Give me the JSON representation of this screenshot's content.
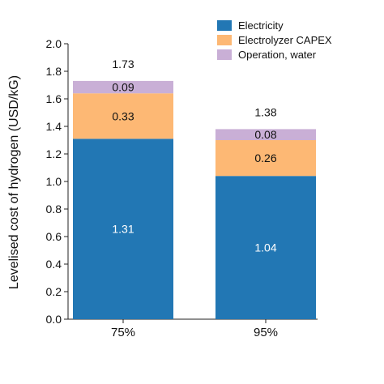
{
  "chart_data": {
    "type": "bar",
    "stacked": true,
    "categories": [
      "75%",
      "95%"
    ],
    "series": [
      {
        "name": "Electricity",
        "values": [
          1.31,
          1.04
        ],
        "color": "#2277b4",
        "label_color": "#ffffff"
      },
      {
        "name": "Electrolyzer CAPEX",
        "values": [
          0.33,
          0.26
        ],
        "color": "#fdb874",
        "label_color": "#111111"
      },
      {
        "name": "Operation, water",
        "values": [
          0.09,
          0.08
        ],
        "color": "#c9afd6",
        "label_color": "#111111"
      }
    ],
    "totals": [
      1.73,
      1.38
    ],
    "ylabel": "Levelised cost of hydrogen (USD/kG)",
    "xlabel": "",
    "ylim": [
      0,
      2.0
    ],
    "yticks": [
      "0.0",
      "0.2",
      "0.4",
      "0.6",
      "0.8",
      "1.0",
      "1.2",
      "1.4",
      "1.6",
      "1.8",
      "2.0"
    ],
    "legend": "top-right",
    "grid": false
  }
}
